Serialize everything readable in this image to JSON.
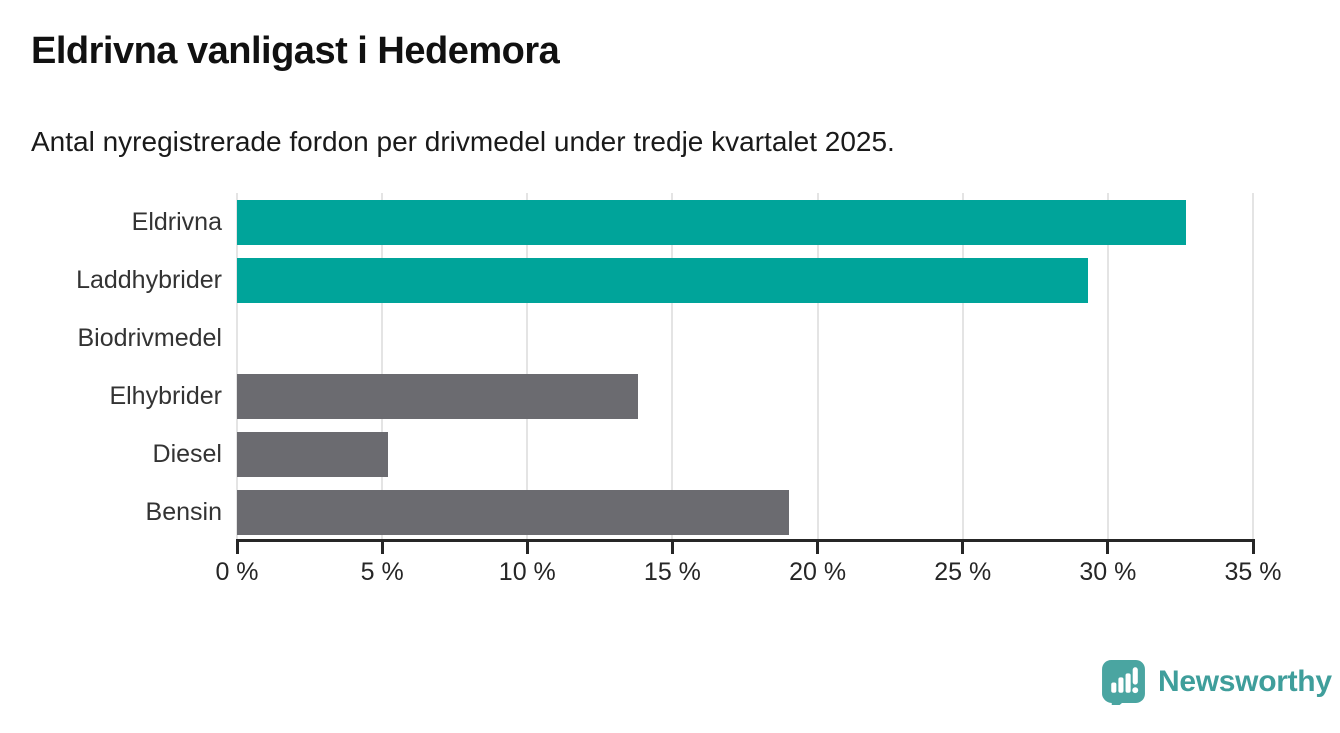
{
  "header": {
    "title": "Eldrivna vanligast i Hedemora",
    "subtitle": "Antal nyregistrerade fordon per drivmedel under tredje kvartalet 2025."
  },
  "chart_data": {
    "type": "bar",
    "orientation": "horizontal",
    "title": "Eldrivna vanligast i Hedemora",
    "subtitle": "Antal nyregistrerade fordon per drivmedel under tredje kvartalet 2025.",
    "categories": [
      "Eldrivna",
      "Laddhybrider",
      "Biodrivmedel",
      "Elhybrider",
      "Diesel",
      "Bensin"
    ],
    "values": [
      32.7,
      29.3,
      0.0,
      13.8,
      5.2,
      19.0
    ],
    "unit": "%",
    "xlabel": "",
    "ylabel": "",
    "xlim": [
      0,
      35
    ],
    "x_ticks": [
      0,
      5,
      10,
      15,
      20,
      25,
      30,
      35
    ],
    "x_tick_labels": [
      "0 %",
      "5 %",
      "10 %",
      "15 %",
      "20 %",
      "25 %",
      "30 %",
      "35 %"
    ],
    "grid": true,
    "legend": false,
    "bar_colors": [
      "#00a49a",
      "#00a49a",
      "#6b6b70",
      "#6b6b70",
      "#6b6b70",
      "#6b6b70"
    ],
    "highlight_color": "#00a49a",
    "default_color": "#6b6b70",
    "gridline_color": "#e4e4e4",
    "axis_color": "#262626"
  },
  "footer": {
    "brand": "Newsworthy",
    "brand_color": "#3f9e9b",
    "badge_color": "#4aa5a1",
    "badge_icon": "bar-chart-exclamation-bubble"
  }
}
